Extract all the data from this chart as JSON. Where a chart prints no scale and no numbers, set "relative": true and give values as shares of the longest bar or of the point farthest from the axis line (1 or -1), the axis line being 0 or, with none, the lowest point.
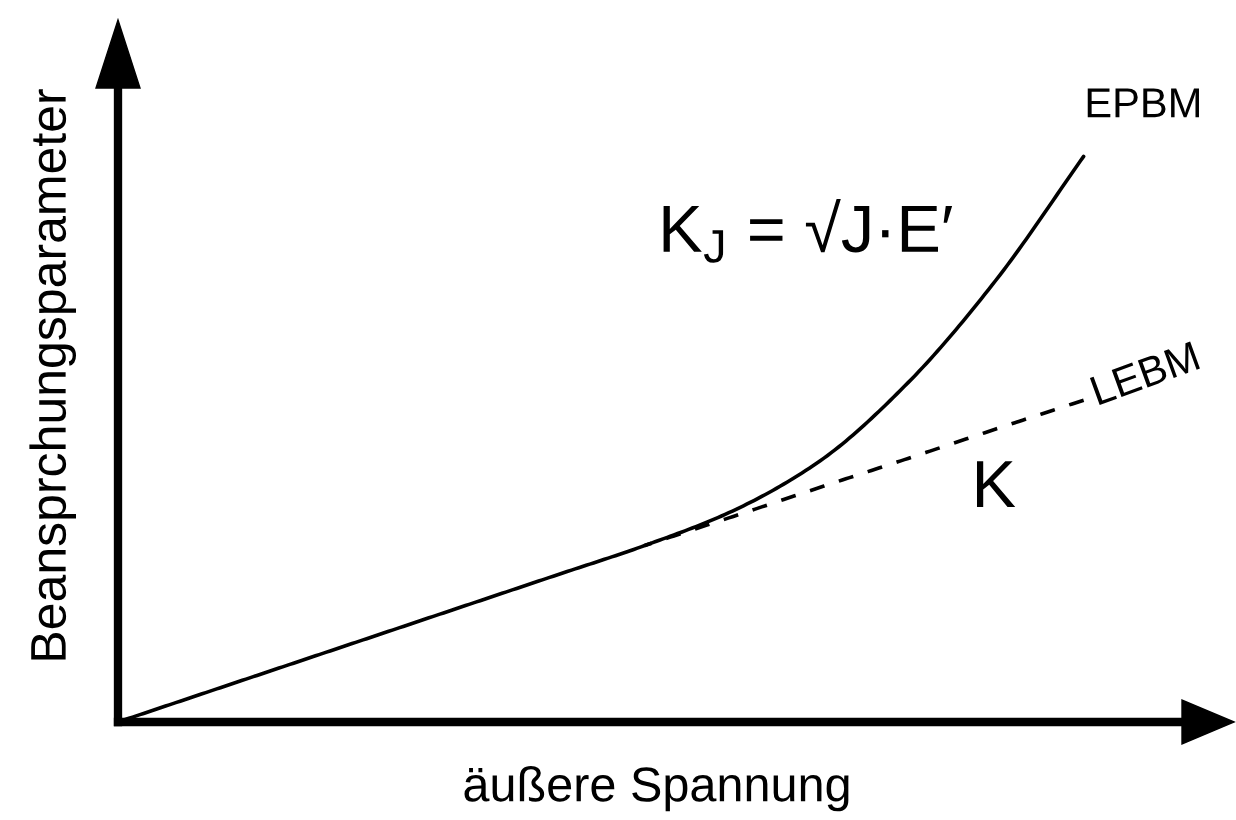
{
  "chart_data": {
    "type": "line",
    "relative": true,
    "marker": "none",
    "xlabel": "äußere Spannung",
    "ylabel": "Beansprchungsparameter",
    "categories": [
      null,
      null,
      null,
      null,
      null,
      null,
      null,
      null,
      null,
      null,
      null,
      null
    ],
    "series": [
      {
        "name": "EPBM",
        "color": "#000000",
        "line_style": "solid",
        "values": [
          0,
          0.052,
          0.104,
          0.156,
          0.208,
          0.26,
          0.312,
          0.373,
          0.462,
          0.6,
          0.781,
          1
        ]
      },
      {
        "name": "LEBM",
        "color": "#000000",
        "line_style": "dashed",
        "values": [
          null,
          null,
          null,
          null,
          null,
          null,
          0.312,
          0.363,
          0.415,
          0.466,
          0.518,
          0.569
        ]
      }
    ],
    "annotations": [
      "K$_{J}$ = √J·E′",
      "K"
    ]
  }
}
